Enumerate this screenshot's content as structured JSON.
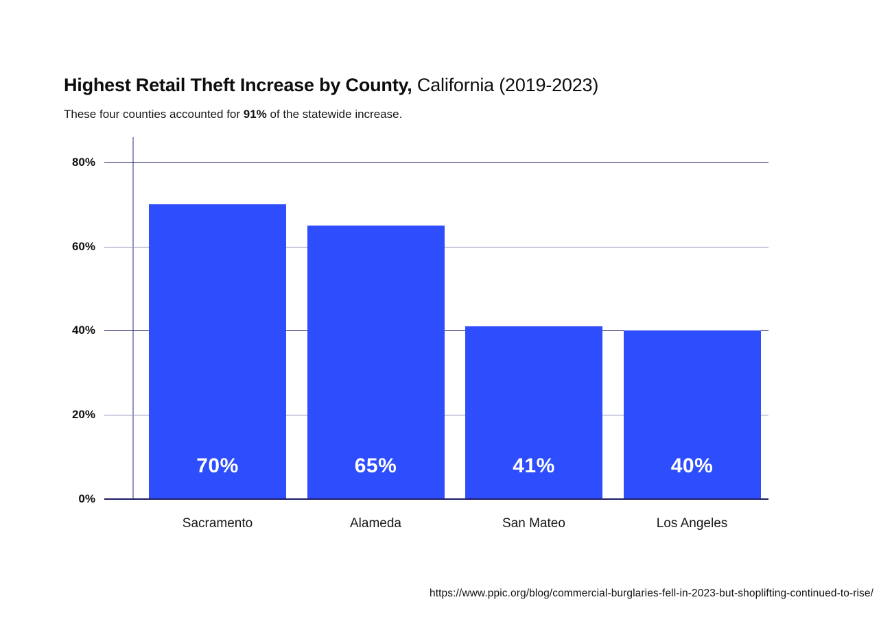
{
  "title": {
    "bold": "Highest Retail Theft Increase by County,",
    "regular": " California (2019-2023)"
  },
  "subtitle": {
    "prefix": "These four counties accounted for ",
    "highlight": "91%",
    "suffix": " of the statewide increase."
  },
  "source_url": "https://www.ppic.org/blog/commercial-burglaries-fell-in-2023-but-shoplifting-continued-to-rise/",
  "chart_data": {
    "type": "bar",
    "title": "Highest Retail Theft Increase by County, California (2019-2023)",
    "subtitle": "These four counties accounted for 91% of the statewide increase.",
    "categories": [
      "Sacramento",
      "Alameda",
      "San Mateo",
      "Los Angeles"
    ],
    "values": [
      70,
      65,
      41,
      40
    ],
    "value_labels": [
      "70%",
      "65%",
      "41%",
      "40%"
    ],
    "xlabel": "",
    "ylabel": "",
    "ylim": [
      0,
      80
    ],
    "yticks": [
      0,
      20,
      40,
      60,
      80
    ],
    "ytick_labels": [
      "0%",
      "20%",
      "40%",
      "60%",
      "80%"
    ],
    "grid": true,
    "legend": "none",
    "bar_color": "#2e4dfc",
    "value_label_color": "#ffffff",
    "gridline_dark_color": "#1b1b62",
    "gridline_light_color": "#8d92bb",
    "source": "https://www.ppic.org/blog/commercial-burglaries-fell-in-2023-but-shoplifting-continued-to-rise/"
  }
}
